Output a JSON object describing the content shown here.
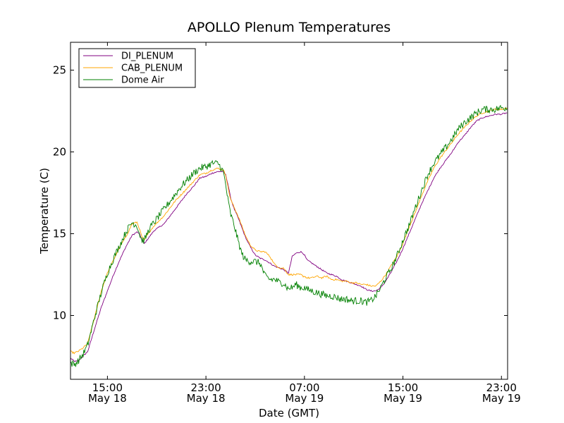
{
  "chart_data": {
    "type": "line",
    "title": "APOLLO Plenum Temperatures",
    "xlabel": "Date (GMT)",
    "ylabel": "Temperature (C)",
    "x_unit": "hours since May 18 00:00 GMT",
    "xlim": [
      12.0,
      47.5
    ],
    "ylim": [
      6.1,
      26.7
    ],
    "grid": false,
    "legend_position": "top-left",
    "x_ticks": [
      {
        "value": 15,
        "time": "15:00",
        "date": "May 18"
      },
      {
        "value": 23,
        "time": "23:00",
        "date": "May 18"
      },
      {
        "value": 31,
        "time": "07:00",
        "date": "May 19"
      },
      {
        "value": 39,
        "time": "15:00",
        "date": "May 19"
      },
      {
        "value": 47,
        "time": "23:00",
        "date": "May 19"
      }
    ],
    "y_ticks": [
      10,
      15,
      20,
      25
    ],
    "series": [
      {
        "name": "DI_PLENUM",
        "color": "#800080",
        "noise": 0.04,
        "x": [
          12.0,
          12.3,
          12.6,
          13.0,
          13.4,
          14.0,
          14.5,
          15.0,
          15.5,
          16.0,
          16.5,
          17.0,
          17.4,
          17.6,
          17.8,
          18.0,
          18.4,
          18.8,
          19.2,
          19.6,
          20.0,
          20.5,
          21.0,
          21.5,
          22.0,
          22.5,
          23.0,
          23.5,
          24.0,
          24.4,
          24.6,
          24.8,
          25.0,
          25.3,
          25.6,
          25.9,
          26.2,
          26.6,
          27.0,
          27.4,
          27.8,
          28.2,
          28.6,
          29.0,
          29.3,
          29.5,
          29.7,
          29.8,
          30.0,
          30.3,
          30.7,
          30.9,
          31.0,
          31.2,
          31.6,
          32.0,
          32.4,
          32.8,
          33.2,
          33.6,
          34.0,
          34.4,
          34.8,
          35.2,
          35.6,
          36.0,
          36.4,
          36.8,
          37.2,
          37.6,
          38.0,
          38.5,
          39.0,
          39.5,
          40.0,
          40.5,
          41.0,
          41.5,
          42.0,
          42.5,
          43.0,
          43.5,
          44.0,
          44.5,
          45.0,
          45.5,
          46.0,
          46.5,
          47.0,
          47.5
        ],
        "values": [
          7.4,
          7.2,
          7.2,
          7.5,
          7.8,
          9.3,
          10.5,
          11.5,
          12.5,
          13.4,
          14.2,
          14.9,
          15.1,
          15.0,
          14.6,
          14.4,
          14.8,
          15.2,
          15.4,
          15.6,
          16.0,
          16.5,
          17.0,
          17.5,
          17.9,
          18.4,
          18.5,
          18.7,
          18.8,
          18.8,
          18.6,
          18.0,
          17.2,
          16.5,
          16.0,
          15.4,
          14.8,
          14.2,
          13.7,
          13.5,
          13.4,
          13.2,
          13.0,
          12.9,
          12.8,
          12.7,
          12.6,
          12.9,
          13.6,
          13.8,
          13.9,
          13.8,
          13.7,
          13.4,
          13.2,
          13.0,
          12.8,
          12.6,
          12.5,
          12.4,
          12.2,
          12.1,
          12.0,
          11.9,
          11.8,
          11.6,
          11.5,
          11.5,
          11.7,
          12.1,
          12.6,
          13.3,
          14.1,
          15.0,
          15.9,
          16.8,
          17.6,
          18.4,
          19.0,
          19.5,
          20.0,
          20.6,
          21.0,
          21.5,
          21.9,
          22.1,
          22.2,
          22.3,
          22.3,
          22.4
        ]
      },
      {
        "name": "CAB_PLENUM",
        "color": "#FFA500",
        "noise": 0.05,
        "x": [
          12.0,
          12.3,
          12.6,
          13.0,
          13.4,
          14.0,
          14.5,
          15.0,
          15.5,
          16.0,
          16.5,
          17.0,
          17.4,
          17.6,
          17.8,
          18.0,
          18.4,
          18.8,
          19.2,
          19.6,
          20.0,
          20.5,
          21.0,
          21.5,
          22.0,
          22.5,
          23.0,
          23.5,
          24.0,
          24.4,
          24.6,
          24.8,
          25.0,
          25.3,
          25.6,
          25.9,
          26.2,
          26.6,
          27.0,
          27.4,
          27.8,
          28.2,
          28.6,
          29.0,
          29.3,
          29.5,
          29.7,
          29.8,
          30.0,
          30.3,
          30.7,
          30.9,
          31.0,
          31.2,
          31.6,
          32.0,
          32.4,
          32.8,
          33.2,
          33.6,
          34.0,
          34.4,
          34.8,
          35.2,
          35.6,
          36.0,
          36.4,
          36.8,
          37.2,
          37.6,
          38.0,
          38.5,
          39.0,
          39.5,
          40.0,
          40.5,
          41.0,
          41.5,
          42.0,
          42.5,
          43.0,
          43.5,
          44.0,
          44.5,
          45.0,
          45.5,
          46.0,
          46.5,
          47.0,
          47.5
        ],
        "values": [
          7.8,
          7.7,
          7.8,
          8.0,
          8.3,
          10.0,
          11.5,
          12.6,
          13.4,
          14.2,
          14.8,
          15.6,
          15.7,
          15.3,
          14.8,
          14.6,
          15.1,
          15.5,
          15.8,
          16.1,
          16.5,
          17.0,
          17.4,
          17.8,
          18.2,
          18.6,
          18.7,
          18.9,
          19.0,
          18.9,
          18.6,
          17.8,
          17.1,
          16.6,
          16.1,
          15.5,
          14.9,
          14.3,
          14.0,
          13.9,
          13.9,
          13.6,
          13.1,
          12.9,
          12.9,
          12.7,
          12.5,
          12.5,
          12.5,
          12.5,
          12.5,
          12.4,
          12.4,
          12.3,
          12.3,
          12.4,
          12.3,
          12.4,
          12.2,
          12.2,
          12.1,
          12.1,
          12.0,
          12.0,
          11.9,
          11.9,
          11.8,
          11.8,
          12.1,
          12.5,
          13.0,
          13.6,
          14.4,
          15.4,
          16.3,
          17.3,
          18.2,
          19.0,
          19.6,
          20.1,
          20.6,
          21.1,
          21.5,
          21.9,
          22.2,
          22.4,
          22.5,
          22.6,
          22.6,
          22.7
        ]
      },
      {
        "name": "Dome Air",
        "color": "#008000",
        "noise": 0.22,
        "x": [
          12.0,
          12.3,
          12.6,
          13.0,
          13.4,
          14.0,
          14.5,
          15.0,
          15.5,
          16.0,
          16.5,
          17.0,
          17.4,
          17.6,
          17.8,
          18.0,
          18.4,
          18.8,
          19.2,
          19.6,
          20.0,
          20.5,
          21.0,
          21.5,
          22.0,
          22.5,
          23.0,
          23.5,
          24.0,
          24.4,
          24.6,
          24.8,
          25.0,
          25.3,
          25.6,
          25.9,
          26.2,
          26.6,
          27.0,
          27.4,
          27.8,
          28.2,
          28.6,
          29.0,
          29.3,
          29.5,
          29.7,
          29.8,
          30.0,
          30.3,
          30.7,
          30.9,
          31.0,
          31.2,
          31.6,
          32.0,
          32.4,
          32.8,
          33.2,
          33.6,
          34.0,
          34.4,
          34.8,
          35.2,
          35.6,
          36.0,
          36.4,
          36.8,
          37.2,
          37.6,
          38.0,
          38.5,
          39.0,
          39.5,
          40.0,
          40.5,
          41.0,
          41.5,
          42.0,
          42.5,
          43.0,
          43.5,
          44.0,
          44.5,
          45.0,
          45.5,
          46.0,
          46.5,
          47.0,
          47.5
        ],
        "values": [
          7.1,
          7.0,
          7.2,
          7.6,
          8.2,
          10.0,
          11.4,
          12.6,
          13.5,
          14.3,
          15.1,
          15.7,
          15.5,
          15.0,
          14.6,
          14.6,
          15.3,
          15.7,
          16.1,
          16.5,
          16.9,
          17.4,
          17.9,
          18.3,
          18.7,
          19.0,
          19.1,
          19.3,
          19.3,
          18.8,
          18.0,
          17.0,
          16.2,
          15.5,
          14.6,
          13.8,
          13.4,
          13.3,
          13.3,
          13.2,
          12.4,
          12.2,
          12.2,
          12.0,
          12.0,
          11.8,
          11.6,
          11.7,
          11.7,
          11.9,
          11.7,
          11.7,
          11.7,
          11.6,
          11.5,
          11.4,
          11.3,
          11.2,
          11.2,
          11.1,
          11.0,
          11.0,
          10.9,
          10.9,
          10.9,
          10.8,
          10.9,
          11.2,
          11.7,
          12.3,
          12.8,
          13.6,
          14.6,
          15.5,
          16.6,
          17.6,
          18.6,
          19.3,
          19.8,
          20.3,
          20.8,
          21.4,
          21.8,
          22.1,
          22.4,
          22.6,
          22.6,
          22.6,
          22.7,
          22.7
        ]
      }
    ]
  }
}
